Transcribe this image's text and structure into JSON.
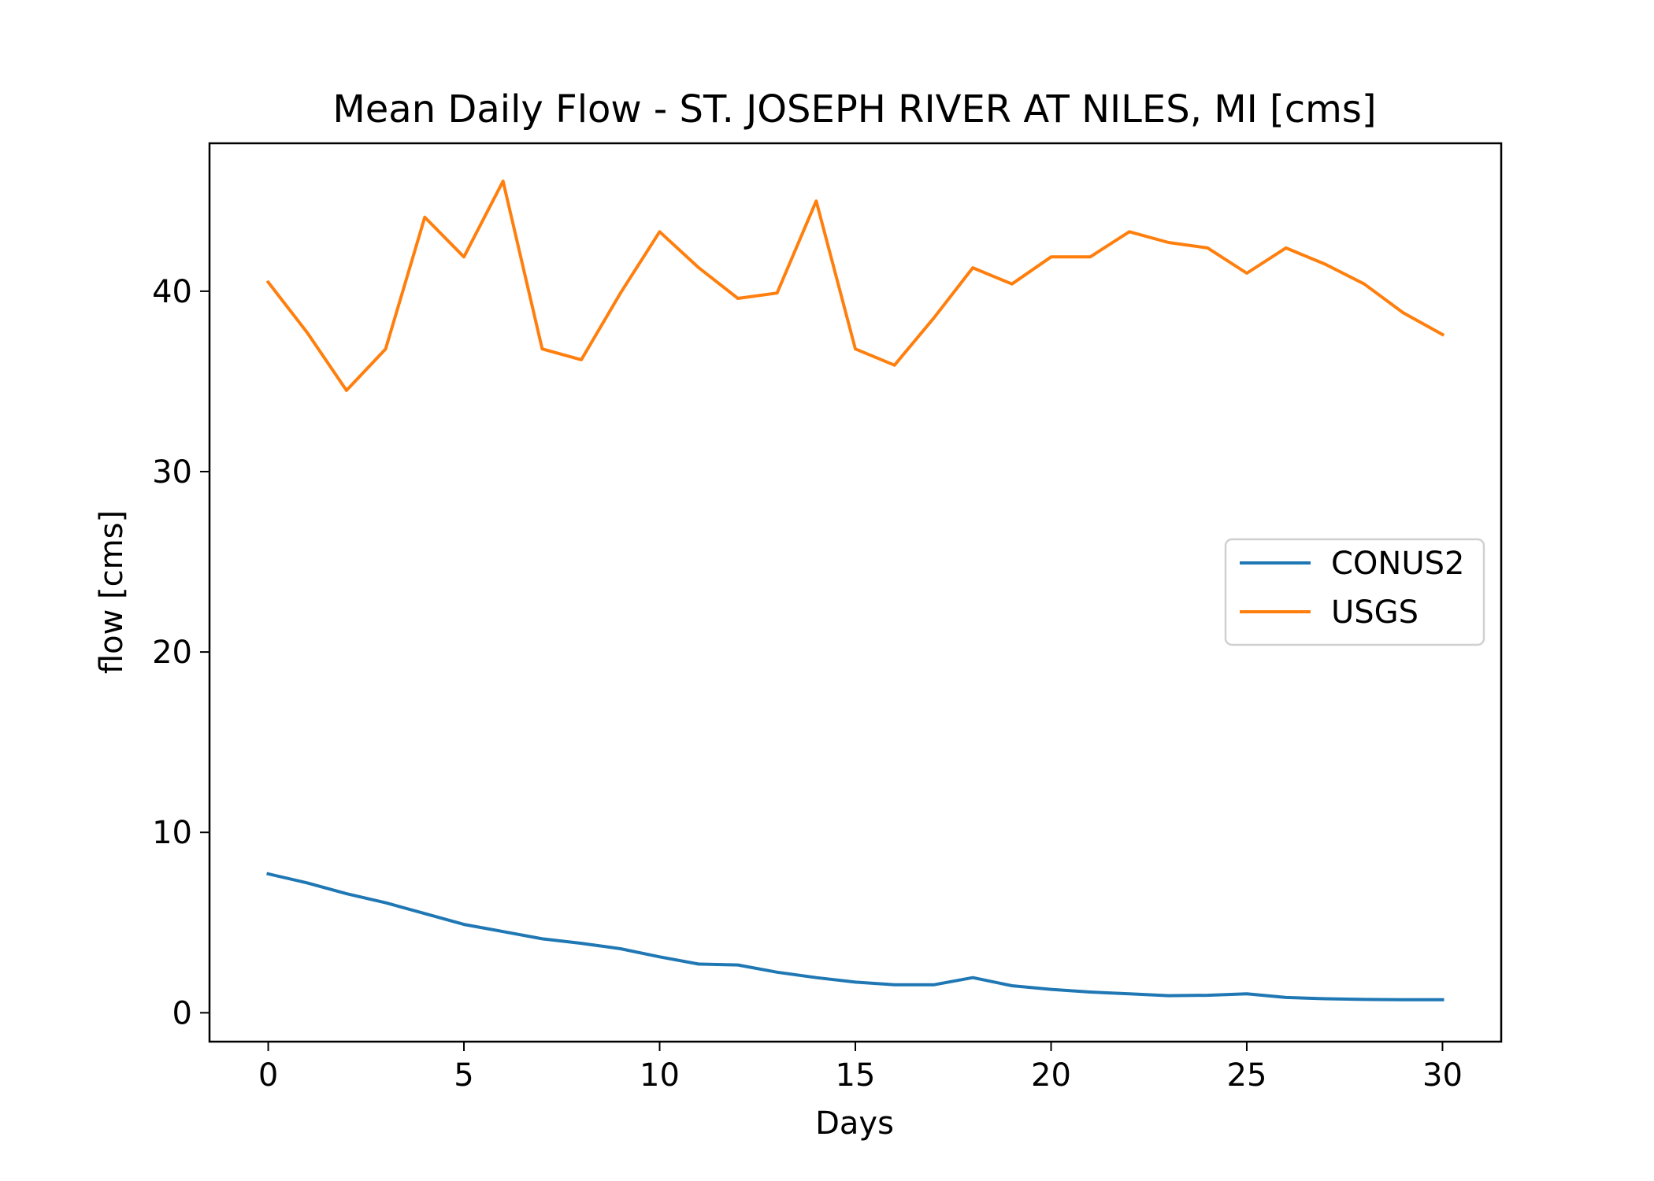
{
  "chart_data": {
    "type": "line",
    "title": "Mean Daily Flow - ST. JOSEPH RIVER AT NILES, MI [cms]",
    "xlabel": "Days",
    "ylabel": "flow [cms]",
    "xlim": [
      -1.5,
      31.5
    ],
    "ylim": [
      -1.6,
      48.2
    ],
    "xticks": [
      0,
      5,
      10,
      15,
      20,
      25,
      30
    ],
    "yticks": [
      0,
      10,
      20,
      30,
      40
    ],
    "grid": false,
    "legend_position": "center-right",
    "x": [
      0,
      1,
      2,
      3,
      4,
      5,
      6,
      7,
      8,
      9,
      10,
      11,
      12,
      13,
      14,
      15,
      16,
      17,
      18,
      19,
      20,
      21,
      22,
      23,
      24,
      25,
      26,
      27,
      28,
      29,
      30
    ],
    "series": [
      {
        "name": "CONUS2",
        "color": "#1f77b4",
        "values": [
          7.7,
          7.2,
          6.6,
          6.1,
          5.5,
          4.9,
          4.5,
          4.1,
          3.85,
          3.55,
          3.1,
          2.7,
          2.65,
          2.25,
          1.95,
          1.7,
          1.55,
          1.55,
          1.95,
          1.5,
          1.3,
          1.15,
          1.05,
          0.95,
          0.97,
          1.05,
          0.85,
          0.78,
          0.74,
          0.72,
          0.72
        ]
      },
      {
        "name": "USGS",
        "color": "#ff7f0e",
        "values": [
          40.5,
          37.7,
          34.5,
          36.8,
          44.1,
          41.9,
          46.1,
          36.8,
          36.2,
          39.9,
          43.3,
          41.3,
          39.6,
          39.9,
          45,
          36.8,
          35.9,
          38.5,
          41.3,
          40.4,
          41.9,
          41.9,
          43.3,
          42.7,
          42.4,
          41,
          42.4,
          41.5,
          40.4,
          38.8,
          37.6
        ]
      }
    ]
  }
}
